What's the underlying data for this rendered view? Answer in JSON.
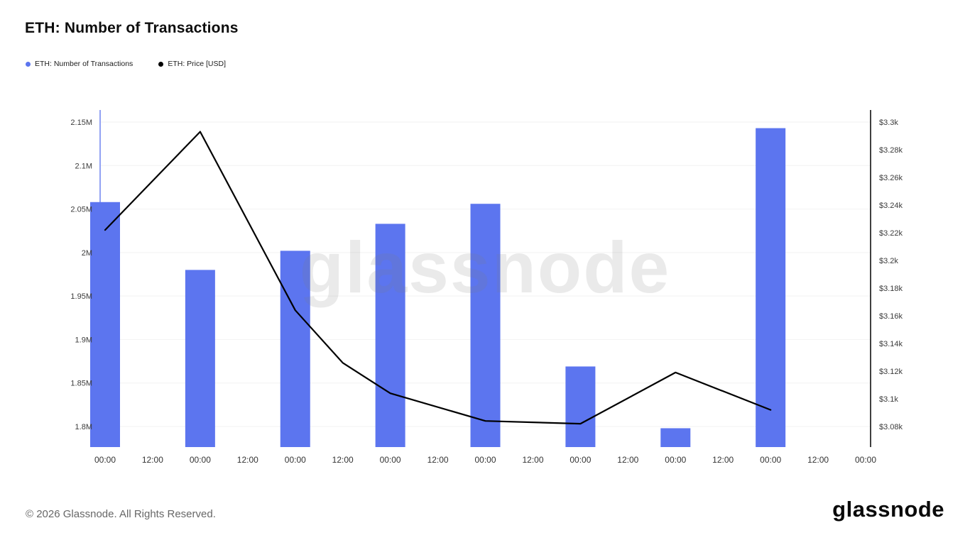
{
  "title": "ETH: Number of Transactions",
  "legend": {
    "transactions_label": "ETH: Number of Transactions",
    "price_label": "ETH: Price [USD]"
  },
  "watermark": "glassnode",
  "footer": {
    "copyright": "© 2026 Glassnode. All Rights Reserved.",
    "logo_text": "glassnode"
  },
  "chart_data": {
    "type": "bar+line",
    "title": "ETH: Number of Transactions",
    "grid": true,
    "x_axis": {
      "label_step": "12h",
      "labels": [
        "00:00",
        "12:00",
        "00:00",
        "12:00",
        "00:00",
        "12:00",
        "00:00",
        "12:00",
        "00:00",
        "12:00",
        "00:00",
        "12:00",
        "00:00",
        "12:00",
        "00:00",
        "12:00",
        "00:00"
      ]
    },
    "left_axis": {
      "title": "Number of Transactions",
      "min": 1.8,
      "max": 2.15,
      "unit": "M",
      "ticks": [
        {
          "v": 1.8,
          "t": "1.8M"
        },
        {
          "v": 1.85,
          "t": "1.85M"
        },
        {
          "v": 1.9,
          "t": "1.9M"
        },
        {
          "v": 1.95,
          "t": "1.95M"
        },
        {
          "v": 2.0,
          "t": "2M"
        },
        {
          "v": 2.05,
          "t": "2.05M"
        },
        {
          "v": 2.1,
          "t": "2.1M"
        },
        {
          "v": 2.15,
          "t": "2.15M"
        }
      ],
      "line_color": "#92a2f4"
    },
    "right_axis": {
      "title": "Price [USD]",
      "min": 3.08,
      "max": 3.3,
      "unit": "$k",
      "ticks": [
        {
          "v": 3.08,
          "t": "$3.08k"
        },
        {
          "v": 3.1,
          "t": "$3.1k"
        },
        {
          "v": 3.12,
          "t": "$3.12k"
        },
        {
          "v": 3.14,
          "t": "$3.14k"
        },
        {
          "v": 3.16,
          "t": "$3.16k"
        },
        {
          "v": 3.18,
          "t": "$3.18k"
        },
        {
          "v": 3.2,
          "t": "$3.2k"
        },
        {
          "v": 3.22,
          "t": "$3.22k"
        },
        {
          "v": 3.24,
          "t": "$3.24k"
        },
        {
          "v": 3.26,
          "t": "$3.26k"
        },
        {
          "v": 3.28,
          "t": "$3.28k"
        },
        {
          "v": 3.3,
          "t": "$3.3k"
        }
      ],
      "line_color": "#000000"
    },
    "bars": {
      "name": "ETH: Number of Transactions",
      "axis": "left",
      "unit": "M transactions",
      "color": "#5c75ef",
      "days": [
        0,
        1,
        2,
        3,
        4,
        5,
        6,
        7
      ],
      "values": [
        2.058,
        1.98,
        2.002,
        2.033,
        2.056,
        1.869,
        1.798,
        2.143
      ]
    },
    "line": {
      "name": "ETH: Price [USD]",
      "axis": "right",
      "unit": "$k",
      "color": "#000000",
      "points": [
        {
          "day": 0,
          "v": 3.222
        },
        {
          "day": 1,
          "v": 3.293
        },
        {
          "day": 2,
          "v": 3.164
        },
        {
          "day": 2.5,
          "v": 3.126
        },
        {
          "day": 3,
          "v": 3.104
        },
        {
          "day": 4,
          "v": 3.084
        },
        {
          "day": 5,
          "v": 3.082
        },
        {
          "day": 6,
          "v": 3.119
        },
        {
          "day": 7,
          "v": 3.092
        }
      ]
    },
    "gridline_color": "#f2f2f2"
  }
}
